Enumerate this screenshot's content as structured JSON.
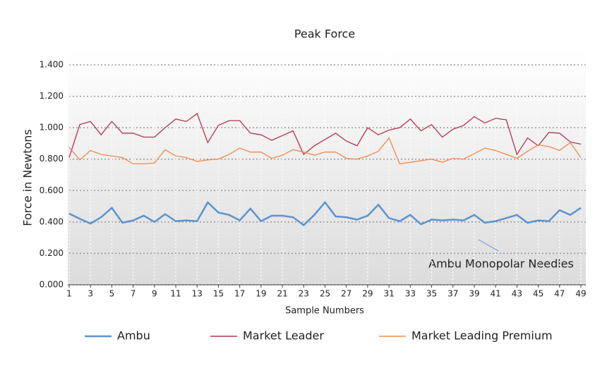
{
  "chart_data": {
    "type": "line",
    "title": "Peak Force",
    "x_label": "Sample Numbers",
    "y_label": "Force in Newtons",
    "annotation": "Ambu Monopolar Needles",
    "x": [
      1,
      2,
      3,
      4,
      5,
      6,
      7,
      8,
      9,
      10,
      11,
      12,
      13,
      14,
      15,
      16,
      17,
      18,
      19,
      20,
      21,
      22,
      23,
      24,
      25,
      26,
      27,
      28,
      29,
      30,
      31,
      32,
      33,
      34,
      35,
      36,
      37,
      38,
      39,
      40,
      41,
      42,
      43,
      44,
      45,
      46,
      47,
      48,
      49
    ],
    "series": [
      {
        "name": "Ambu",
        "color": "#5b93cf",
        "values": [
          0.453,
          0.42,
          0.39,
          0.43,
          0.49,
          0.395,
          0.41,
          0.44,
          0.4,
          0.45,
          0.405,
          0.41,
          0.405,
          0.525,
          0.46,
          0.445,
          0.41,
          0.485,
          0.405,
          0.44,
          0.44,
          0.43,
          0.38,
          0.445,
          0.525,
          0.435,
          0.43,
          0.415,
          0.44,
          0.51,
          0.425,
          0.405,
          0.445,
          0.385,
          0.415,
          0.41,
          0.415,
          0.41,
          0.445,
          0.395,
          0.405,
          0.425,
          0.445,
          0.395,
          0.41,
          0.405,
          0.475,
          0.445,
          0.49
        ]
      },
      {
        "name": "Market Leader",
        "color": "#b5334f",
        "values": [
          0.81,
          1.02,
          1.04,
          0.955,
          1.04,
          0.965,
          0.965,
          0.94,
          0.94,
          1.0,
          1.055,
          1.04,
          1.09,
          0.905,
          1.015,
          1.045,
          1.045,
          0.965,
          0.955,
          0.92,
          0.95,
          0.98,
          0.83,
          0.885,
          0.925,
          0.965,
          0.915,
          0.885,
          1.0,
          0.955,
          0.985,
          1.0,
          1.055,
          0.98,
          1.02,
          0.94,
          0.99,
          1.015,
          1.07,
          1.03,
          1.06,
          1.05,
          0.83,
          0.935,
          0.885,
          0.97,
          0.965,
          0.91,
          0.895
        ]
      },
      {
        "name": "Market Leading Premium",
        "color": "#f08a4b",
        "values": [
          0.875,
          0.795,
          0.855,
          0.83,
          0.82,
          0.81,
          0.77,
          0.77,
          0.775,
          0.86,
          0.82,
          0.81,
          0.785,
          0.795,
          0.8,
          0.83,
          0.87,
          0.845,
          0.845,
          0.805,
          0.825,
          0.86,
          0.845,
          0.825,
          0.845,
          0.845,
          0.805,
          0.8,
          0.82,
          0.85,
          0.935,
          0.77,
          0.78,
          0.79,
          0.8,
          0.78,
          0.805,
          0.8,
          0.835,
          0.87,
          0.855,
          0.83,
          0.805,
          0.85,
          0.89,
          0.88,
          0.855,
          0.905,
          0.81
        ]
      }
    ],
    "xlim": [
      1,
      49
    ],
    "xticks": [
      1,
      3,
      5,
      7,
      9,
      11,
      13,
      15,
      17,
      19,
      21,
      23,
      25,
      27,
      29,
      31,
      33,
      35,
      37,
      39,
      41,
      43,
      45,
      47,
      49
    ],
    "ylim": [
      0,
      1.4
    ],
    "yticks": [
      {
        "value": 0,
        "label": "0.000"
      },
      {
        "value": 0.2,
        "label": "0.200"
      },
      {
        "value": 0.4,
        "label": "0.400"
      },
      {
        "value": 0.6,
        "label": "0.600"
      },
      {
        "value": 0.8,
        "label": "0.800"
      },
      {
        "value": 1.0,
        "label": "1.000"
      },
      {
        "value": 1.2,
        "label": "1.200"
      },
      {
        "value": 1.4,
        "label": "1.400"
      }
    ],
    "grid": true
  }
}
